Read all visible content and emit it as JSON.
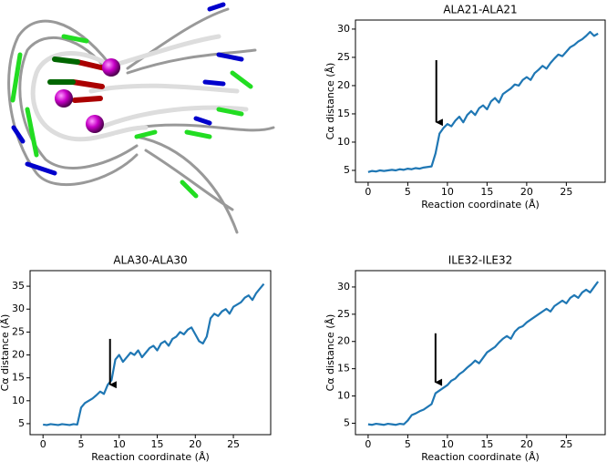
{
  "chart_data": [
    {
      "type": "line",
      "title": "ALA21-ALA21",
      "x_label": "Reaction coordinate (Å)",
      "y_label": "Cα distance (Å)",
      "color": "#1f77b4",
      "xlim": [
        -1.6,
        29.9
      ],
      "ylim": [
        2.9,
        31.6
      ],
      "xticks": [
        0,
        5,
        10,
        15,
        20,
        25
      ],
      "yticks": [
        5,
        10,
        15,
        20,
        25,
        30
      ],
      "annotations": [
        {
          "type": "arrow",
          "x": 8.6,
          "y_start": 24.5,
          "y_end": 13.5
        }
      ],
      "series": [
        {
          "x": [
            0,
            0.5,
            1,
            1.5,
            2,
            2.5,
            3,
            3.5,
            4,
            4.5,
            5,
            5.5,
            6,
            6.5,
            7,
            7.5,
            8,
            8.5,
            9,
            9.5,
            10,
            10.5,
            11,
            11.5,
            12,
            12.5,
            13,
            13.5,
            14,
            14.5,
            15,
            15.5,
            16,
            16.5,
            17,
            17.5,
            18,
            18.5,
            19,
            19.5,
            20,
            20.5,
            21,
            21.5,
            22,
            22.5,
            23,
            23.5,
            24,
            24.5,
            25,
            25.5,
            26,
            26.5,
            27,
            27.5,
            28,
            28.5,
            29
          ],
          "values": [
            4.7,
            4.9,
            4.8,
            5.0,
            4.9,
            5.0,
            5.1,
            5.0,
            5.2,
            5.1,
            5.3,
            5.2,
            5.4,
            5.3,
            5.5,
            5.6,
            5.7,
            8.0,
            11.5,
            12.5,
            13.2,
            12.8,
            13.8,
            14.5,
            13.5,
            14.8,
            15.5,
            14.8,
            16.0,
            16.5,
            15.8,
            17.2,
            17.8,
            17.0,
            18.5,
            19.0,
            19.5,
            20.2,
            20.0,
            21.0,
            21.5,
            21.0,
            22.2,
            22.8,
            23.5,
            23.0,
            24.0,
            24.8,
            25.5,
            25.2,
            26.0,
            26.8,
            27.2,
            27.8,
            28.2,
            28.8,
            29.5,
            28.8,
            29.2
          ]
        }
      ]
    },
    {
      "type": "line",
      "title": "ALA30-ALA30",
      "x_label": "Reaction coordinate (Å)",
      "y_label": "Cα distance (Å)",
      "color": "#1f77b4",
      "xlim": [
        -1.7,
        29.9
      ],
      "ylim": [
        2.6,
        38.4
      ],
      "xticks": [
        0,
        5,
        10,
        15,
        20,
        25
      ],
      "yticks": [
        5,
        10,
        15,
        20,
        25,
        30,
        35
      ],
      "annotations": [
        {
          "type": "arrow",
          "x": 8.8,
          "y_start": 23.5,
          "y_end": 13.5
        }
      ],
      "series": [
        {
          "x": [
            0,
            0.5,
            1,
            1.5,
            2,
            2.5,
            3,
            3.5,
            4,
            4.5,
            5,
            5.5,
            6,
            6.5,
            7,
            7.5,
            8,
            8.5,
            9,
            9.5,
            10,
            10.5,
            11,
            11.5,
            12,
            12.5,
            13,
            13.5,
            14,
            14.5,
            15,
            15.5,
            16,
            16.5,
            17,
            17.5,
            18,
            18.5,
            19,
            19.5,
            20,
            20.5,
            21,
            21.5,
            22,
            22.5,
            23,
            23.5,
            24,
            24.5,
            25,
            25.5,
            26,
            26.5,
            27,
            27.5,
            28,
            28.5,
            29
          ],
          "values": [
            4.8,
            4.7,
            4.9,
            4.8,
            4.7,
            4.9,
            4.8,
            4.7,
            4.9,
            4.8,
            8.5,
            9.5,
            10.0,
            10.5,
            11.2,
            12.0,
            11.5,
            13.5,
            14.5,
            19.0,
            20.0,
            18.5,
            19.5,
            20.5,
            20.0,
            21.0,
            19.5,
            20.5,
            21.5,
            22.0,
            21.0,
            22.5,
            23.0,
            22.0,
            23.5,
            24.0,
            25.0,
            24.5,
            25.5,
            26.0,
            24.5,
            23.0,
            22.5,
            24.0,
            28.0,
            29.0,
            28.5,
            29.5,
            30.0,
            29.0,
            30.5,
            31.0,
            31.5,
            32.5,
            33.0,
            32.0,
            33.5,
            34.5,
            35.5
          ]
        }
      ]
    },
    {
      "type": "line",
      "title": "ILE32-ILE32",
      "x_label": "Reaction coordinate (Å)",
      "y_label": "Cα distance (Å)",
      "color": "#1f77b4",
      "xlim": [
        -1.6,
        29.9
      ],
      "ylim": [
        2.9,
        33.0
      ],
      "xticks": [
        0,
        5,
        10,
        15,
        20,
        25
      ],
      "yticks": [
        5,
        10,
        15,
        20,
        25,
        30
      ],
      "annotations": [
        {
          "type": "arrow",
          "x": 8.5,
          "y_start": 21.5,
          "y_end": 12.5
        }
      ],
      "series": [
        {
          "x": [
            0,
            0.5,
            1,
            1.5,
            2,
            2.5,
            3,
            3.5,
            4,
            4.5,
            5,
            5.5,
            6,
            6.5,
            7,
            7.5,
            8,
            8.5,
            9,
            9.5,
            10,
            10.5,
            11,
            11.5,
            12,
            12.5,
            13,
            13.5,
            14,
            14.5,
            15,
            15.5,
            16,
            16.5,
            17,
            17.5,
            18,
            18.5,
            19,
            19.5,
            20,
            20.5,
            21,
            21.5,
            22,
            22.5,
            23,
            23.5,
            24,
            24.5,
            25,
            25.5,
            26,
            26.5,
            27,
            27.5,
            28,
            28.5,
            29
          ],
          "values": [
            4.8,
            4.7,
            4.9,
            4.8,
            4.7,
            4.9,
            4.8,
            4.7,
            4.9,
            4.8,
            5.5,
            6.5,
            6.8,
            7.2,
            7.5,
            8.0,
            8.5,
            10.5,
            11.0,
            11.5,
            12.0,
            12.8,
            13.2,
            14.0,
            14.5,
            15.2,
            15.8,
            16.5,
            16.0,
            17.0,
            18.0,
            18.5,
            19.0,
            19.8,
            20.5,
            21.0,
            20.5,
            21.8,
            22.5,
            22.8,
            23.5,
            24.0,
            24.5,
            25.0,
            25.5,
            26.0,
            25.5,
            26.5,
            27.0,
            27.5,
            27.0,
            28.0,
            28.5,
            28.0,
            29.0,
            29.5,
            29.0,
            30.0,
            31.0
          ]
        }
      ]
    }
  ]
}
